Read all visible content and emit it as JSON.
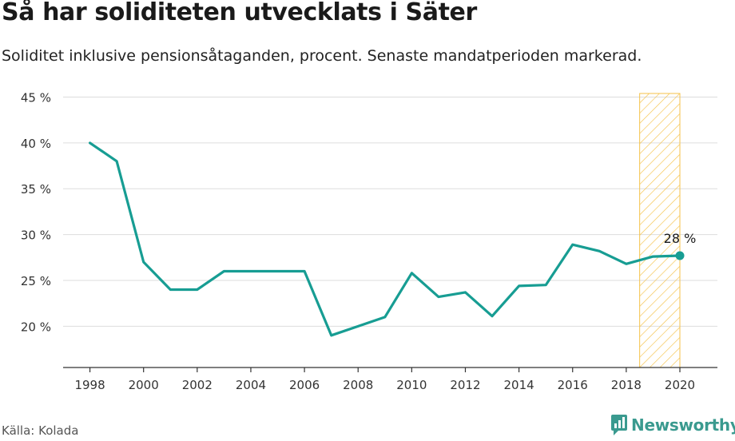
{
  "title": "Så har soliditeten utvecklats i Säter",
  "subtitle": "Soliditet inklusive pensionsåtaganden, procent. Senaste mandatperioden markerad.",
  "source": "Källa: Kolada",
  "brand": "Newsworthy",
  "colors": {
    "line": "#179d93",
    "highlight": "#f5c24a",
    "grid": "#dddddd",
    "axis": "#333333"
  },
  "icons": {
    "brand": "newsworthy-logo-icon"
  },
  "chart_data": {
    "type": "line",
    "title": "Så har soliditeten utvecklats i Säter",
    "xlabel": "",
    "ylabel": "",
    "x": [
      1998,
      1999,
      2000,
      2001,
      2002,
      2003,
      2004,
      2005,
      2006,
      2007,
      2008,
      2009,
      2010,
      2011,
      2012,
      2013,
      2014,
      2015,
      2016,
      2017,
      2018,
      2019,
      2020
    ],
    "series": [
      {
        "values": [
          40,
          38,
          27,
          24,
          24,
          26,
          26,
          26,
          26,
          19,
          20,
          21,
          25.8,
          23.2,
          23.7,
          21.1,
          24.4,
          24.5,
          28.9,
          28.2,
          26.8,
          27.6,
          27.7
        ]
      }
    ],
    "xticks": [
      "1998",
      "2000",
      "2002",
      "2004",
      "2006",
      "2008",
      "2010",
      "2012",
      "2014",
      "2016",
      "2018",
      "2020"
    ],
    "yticks": [
      "20 %",
      "25 %",
      "30 %",
      "35 %",
      "40 %",
      "45 %"
    ],
    "ylim": [
      15.5,
      46
    ],
    "xlim": [
      1997,
      2021.4
    ],
    "highlight_range": [
      2018.5,
      2020
    ],
    "end_label": "28 %",
    "grid": true,
    "legend": "none"
  }
}
